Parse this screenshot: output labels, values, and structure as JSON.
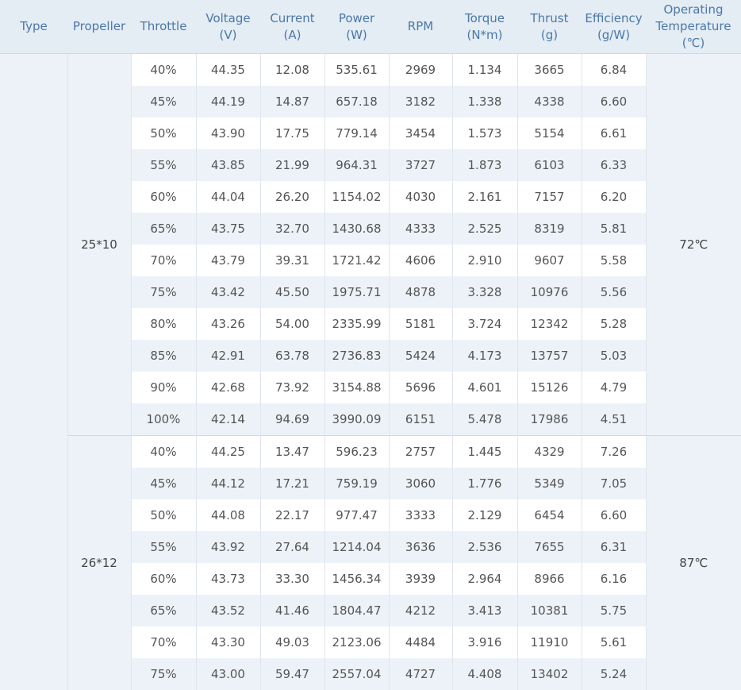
{
  "headers": [
    {
      "key": "type",
      "lines": [
        "Type"
      ]
    },
    {
      "key": "propeller",
      "lines": [
        "Propeller"
      ]
    },
    {
      "key": "throttle",
      "lines": [
        "Throttle"
      ]
    },
    {
      "key": "voltage",
      "lines": [
        "Voltage",
        "(V)"
      ]
    },
    {
      "key": "current",
      "lines": [
        "Current",
        "(A)"
      ]
    },
    {
      "key": "power",
      "lines": [
        "Power",
        "(W)"
      ]
    },
    {
      "key": "rpm",
      "lines": [
        "RPM"
      ]
    },
    {
      "key": "torque",
      "lines": [
        "Torque",
        "(N*m)"
      ]
    },
    {
      "key": "thrust",
      "lines": [
        "Thrust",
        "(g)"
      ]
    },
    {
      "key": "efficiency",
      "lines": [
        "Efficiency",
        "(g/W)"
      ]
    },
    {
      "key": "temperature",
      "lines": [
        "Operating",
        "Temperature",
        "(℃)"
      ]
    }
  ],
  "type_value": "",
  "groups": [
    {
      "propeller": "25*10",
      "temperature": "72℃",
      "rows": [
        [
          "40%",
          "44.35",
          "12.08",
          "535.61",
          "2969",
          "1.134",
          "3665",
          "6.84"
        ],
        [
          "45%",
          "44.19",
          "14.87",
          "657.18",
          "3182",
          "1.338",
          "4338",
          "6.60"
        ],
        [
          "50%",
          "43.90",
          "17.75",
          "779.14",
          "3454",
          "1.573",
          "5154",
          "6.61"
        ],
        [
          "55%",
          "43.85",
          "21.99",
          "964.31",
          "3727",
          "1.873",
          "6103",
          "6.33"
        ],
        [
          "60%",
          "44.04",
          "26.20",
          "1154.02",
          "4030",
          "2.161",
          "7157",
          "6.20"
        ],
        [
          "65%",
          "43.75",
          "32.70",
          "1430.68",
          "4333",
          "2.525",
          "8319",
          "5.81"
        ],
        [
          "70%",
          "43.79",
          "39.31",
          "1721.42",
          "4606",
          "2.910",
          "9607",
          "5.58"
        ],
        [
          "75%",
          "43.42",
          "45.50",
          "1975.71",
          "4878",
          "3.328",
          "10976",
          "5.56"
        ],
        [
          "80%",
          "43.26",
          "54.00",
          "2335.99",
          "5181",
          "3.724",
          "12342",
          "5.28"
        ],
        [
          "85%",
          "42.91",
          "63.78",
          "2736.83",
          "5424",
          "4.173",
          "13757",
          "5.03"
        ],
        [
          "90%",
          "42.68",
          "73.92",
          "3154.88",
          "5696",
          "4.601",
          "15126",
          "4.79"
        ],
        [
          "100%",
          "42.14",
          "94.69",
          "3990.09",
          "6151",
          "5.478",
          "17986",
          "4.51"
        ]
      ]
    },
    {
      "propeller": "26*12",
      "temperature": "87℃",
      "rows": [
        [
          "40%",
          "44.25",
          "13.47",
          "596.23",
          "2757",
          "1.445",
          "4329",
          "7.26"
        ],
        [
          "45%",
          "44.12",
          "17.21",
          "759.19",
          "3060",
          "1.776",
          "5349",
          "7.05"
        ],
        [
          "50%",
          "44.08",
          "22.17",
          "977.47",
          "3333",
          "2.129",
          "6454",
          "6.60"
        ],
        [
          "55%",
          "43.92",
          "27.64",
          "1214.04",
          "3636",
          "2.536",
          "7655",
          "6.31"
        ],
        [
          "60%",
          "43.73",
          "33.30",
          "1456.34",
          "3939",
          "2.964",
          "8966",
          "6.16"
        ],
        [
          "65%",
          "43.52",
          "41.46",
          "1804.47",
          "4212",
          "3.413",
          "10381",
          "5.75"
        ],
        [
          "70%",
          "43.30",
          "49.03",
          "2123.06",
          "4484",
          "3.916",
          "11910",
          "5.61"
        ],
        [
          "75%",
          "43.00",
          "59.47",
          "2557.04",
          "4727",
          "4.408",
          "13402",
          "5.24"
        ]
      ]
    }
  ]
}
